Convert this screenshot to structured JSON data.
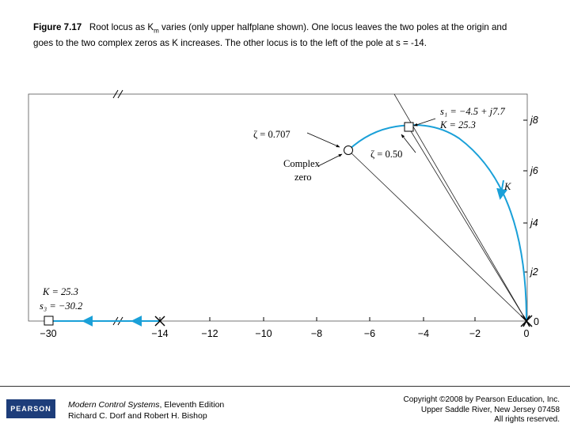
{
  "caption": {
    "figure_label": "Figure 7.17",
    "text_line1": "Root locus as K",
    "text_sub": "m",
    "text_line1_rest": " varies (only upper halfplane shown). One locus leaves the two poles at the origin and",
    "text_line2": "goes to the two complex zeros as K increases. The other locus is to the left of the pole at s = -14."
  },
  "diagram": {
    "x_tick_labels": [
      "−30",
      "−14",
      "−12",
      "−10",
      "−8",
      "−6",
      "−4",
      "−2",
      "0"
    ],
    "y_tick_labels": [
      "0",
      "j2",
      "j4",
      "j6",
      "j8"
    ],
    "annotations": {
      "s1_line": "s₁ = −4.5 + j7.7",
      "k1_line": "K = 25.3",
      "zeta_707": "ζ = 0.707",
      "zeta_050": "ζ = 0.50",
      "complex_zero": [
        "Complex",
        "zero"
      ],
      "k_arrow": "K",
      "k3_line": "K = 25.3",
      "s3_line": "s₃ = −30.2"
    },
    "colors": {
      "locus": "#1aa0d8",
      "axes": "#000000"
    }
  },
  "footer": {
    "logo": "PEARSON",
    "book_title": "Modern Control Systems",
    "book_edition": ", Eleventh Edition",
    "authors": "Richard C. Dorf and Robert H. Bishop",
    "copyright_1": "Copyright ©2008 by Pearson Education, Inc.",
    "copyright_2": "Upper Saddle River, New Jersey 07458",
    "copyright_3": "All rights reserved."
  }
}
